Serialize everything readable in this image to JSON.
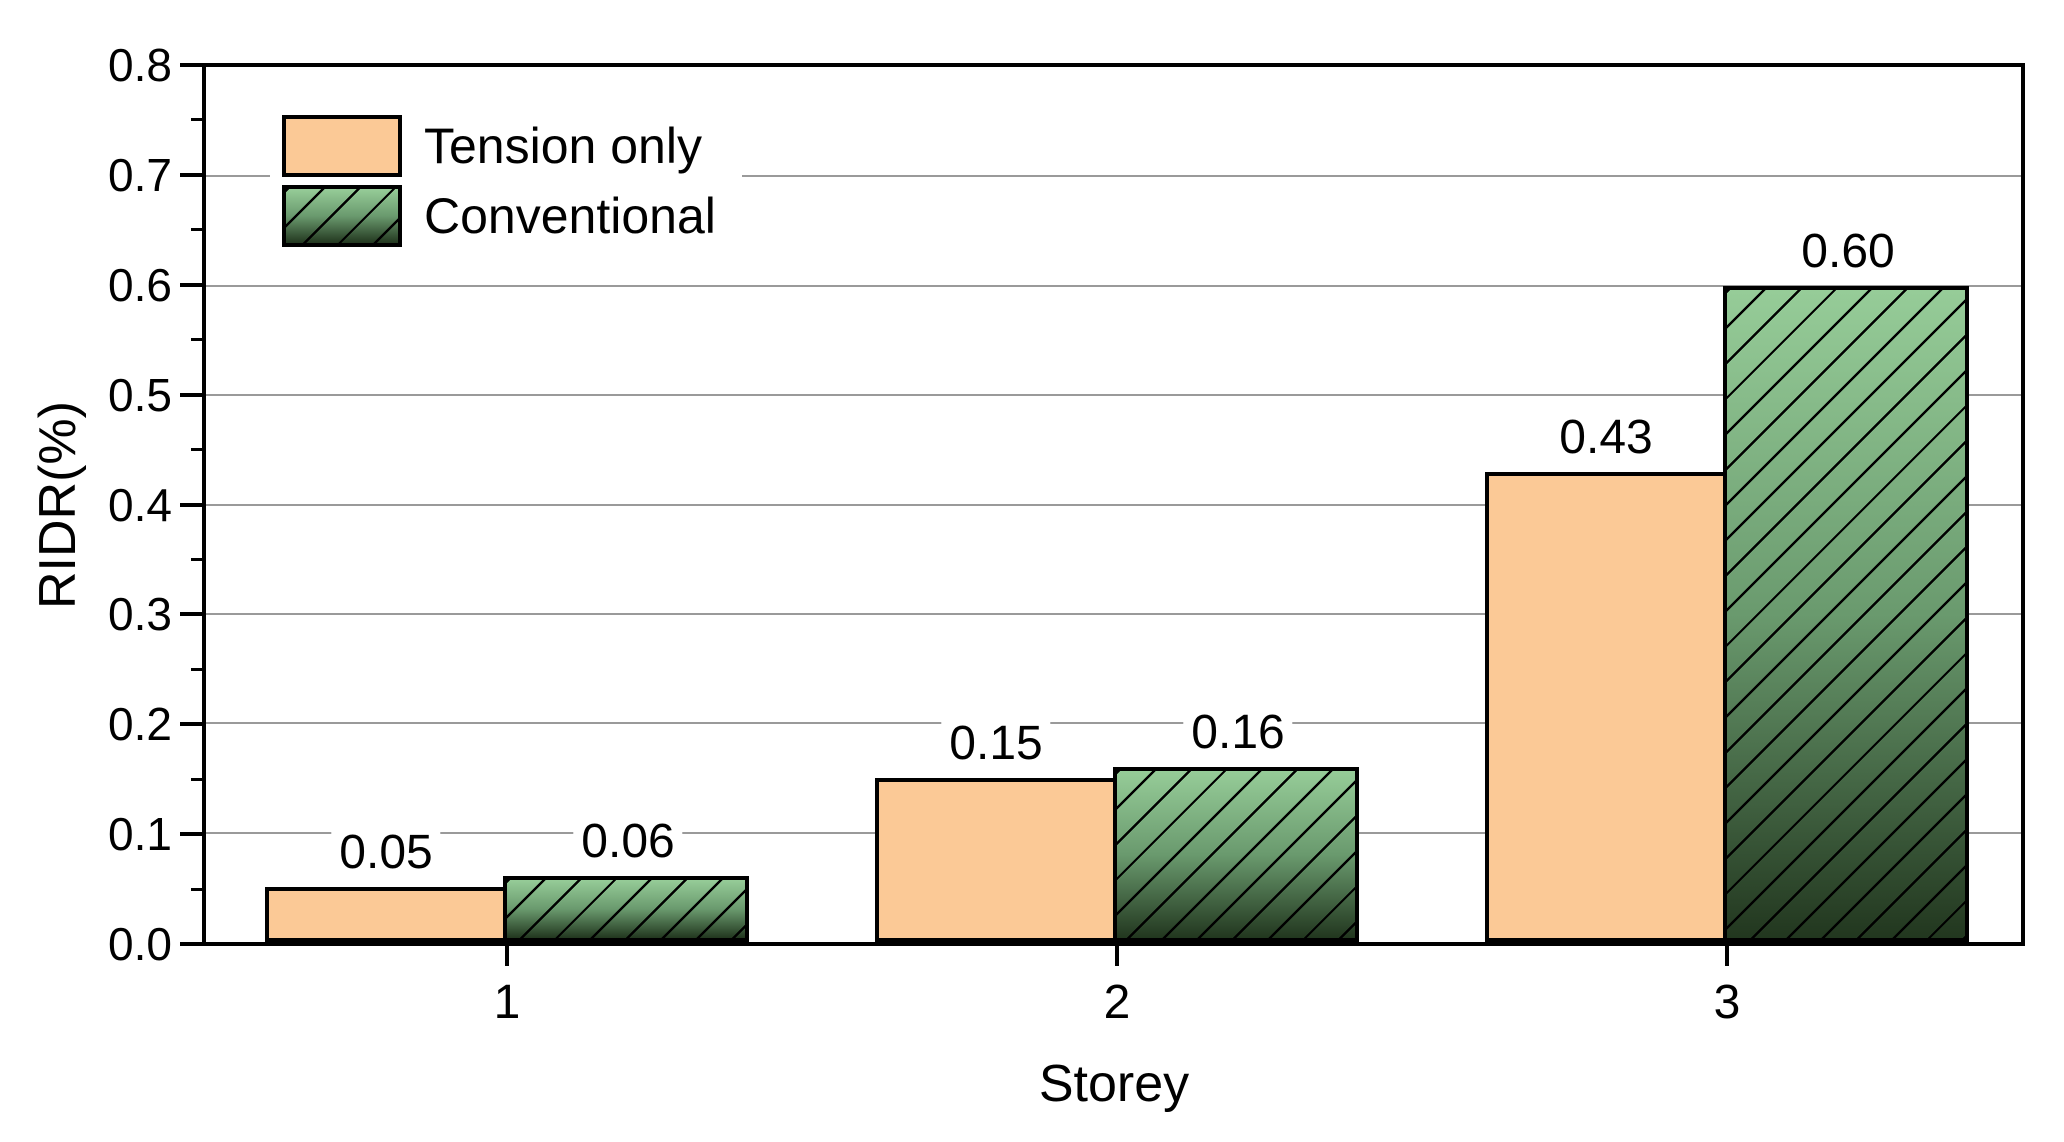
{
  "chart_data": {
    "type": "bar",
    "title": "",
    "xlabel": "Storey",
    "ylabel": "RIDR(%)",
    "categories": [
      "1",
      "2",
      "3"
    ],
    "series": [
      {
        "name": "Tension only",
        "values": [
          0.05,
          0.15,
          0.43
        ],
        "value_labels": [
          "0.05",
          "0.15",
          "0.43"
        ],
        "fill": "#fbc996",
        "border": "#000000",
        "hatch": false
      },
      {
        "name": "Conventional",
        "values": [
          0.06,
          0.16,
          0.6
        ],
        "value_labels": [
          "0.06",
          "0.16",
          "0.60"
        ],
        "gradient": [
          "#96cc98",
          "#6a9a6e",
          "#22371f"
        ],
        "border": "#000000",
        "hatch": true,
        "hatch_color": "#000000"
      }
    ],
    "ylim": [
      0,
      0.8
    ],
    "ytick_labels": [
      "0.0",
      "0.1",
      "0.2",
      "0.3",
      "0.4",
      "0.5",
      "0.6",
      "0.7",
      "0.8"
    ],
    "minor_ticks_midway": true,
    "grid": "horizontal-major",
    "grid_color": "#9a9a9a",
    "axis_color": "#000000",
    "background": "#ffffff",
    "legend_position": "top-left"
  }
}
